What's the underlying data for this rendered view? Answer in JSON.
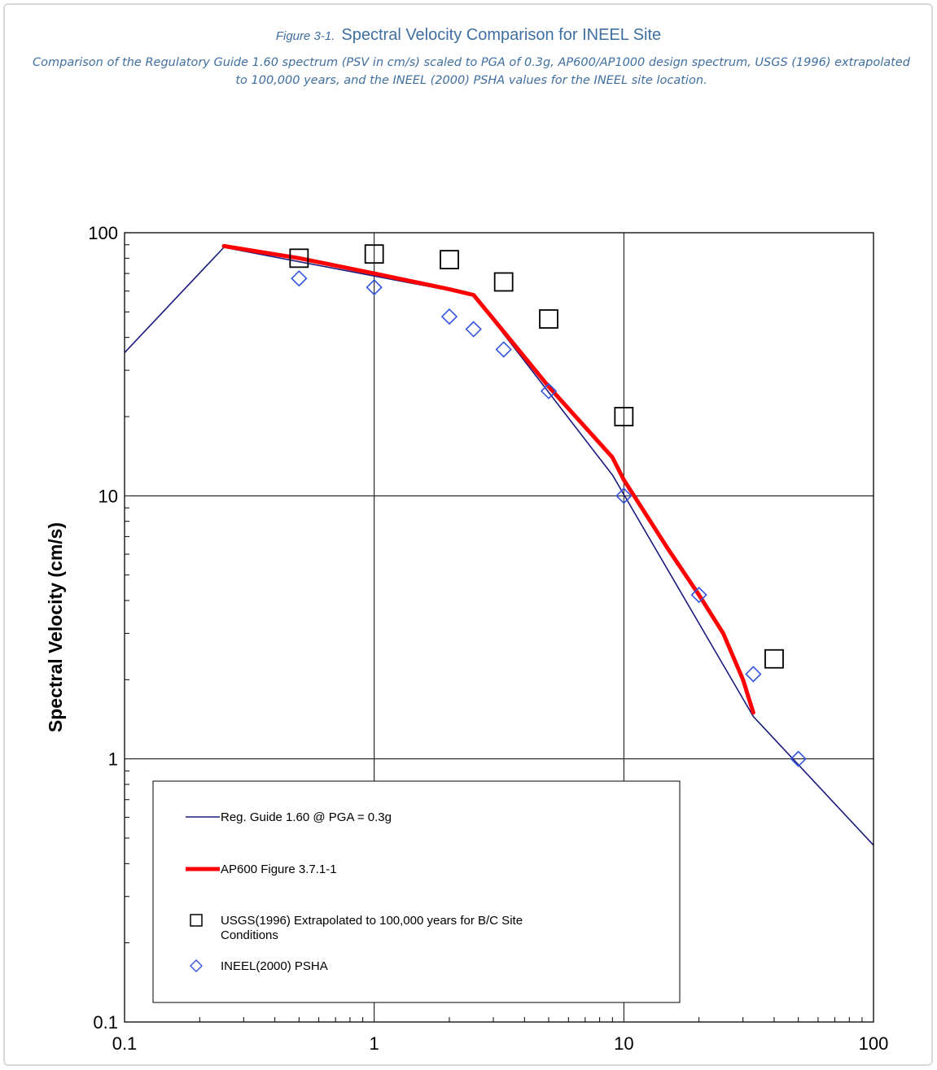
{
  "figure": {
    "number": "Figure 3-1.",
    "title": "Spectral Velocity Comparison for INEEL Site",
    "caption": "Comparison of the Regulatory Guide 1.60 spectrum (PSV in cm/s) scaled to PGA of 0.3g, AP600/AP1000 design spectrum, USGS (1996) extrapolated to 100,000 years, and the INEEL (2000) PSHA values for the INEEL site location."
  },
  "chart_data": {
    "type": "line",
    "xscale": "log",
    "yscale": "log",
    "xlim": [
      0.1,
      100
    ],
    "ylim": [
      0.1,
      100
    ],
    "grid": true,
    "xlabel": "",
    "ylabel": "Spectral Velocity (cm/s)",
    "x_ticks": [
      "0.1",
      "1",
      "10",
      "100"
    ],
    "y_ticks": [
      "0.1",
      "1",
      "10",
      "100"
    ],
    "legend_position": "bottom-left",
    "series": [
      {
        "name": "Reg. Guide 1.60 @ PGA = 0.3g",
        "kind": "line",
        "color": "#1a1a80",
        "x": [
          0.1,
          0.25,
          2.5,
          9.0,
          33.0,
          100.0
        ],
        "y": [
          35.0,
          88.0,
          58.0,
          12.0,
          1.45,
          0.47
        ]
      },
      {
        "name": "AP600 Figure 3.7.1-1",
        "kind": "thick-line",
        "color": "#ff0000",
        "x": [
          0.25,
          0.5,
          1.0,
          2.0,
          2.5,
          3.0,
          5.0,
          9.0,
          10.0,
          15.0,
          20.0,
          25.0,
          30.0,
          33.0
        ],
        "y": [
          89.0,
          80.0,
          70.0,
          61.0,
          58.0,
          47.0,
          26.0,
          14.0,
          11.5,
          6.3,
          4.2,
          3.0,
          2.0,
          1.5
        ]
      },
      {
        "name": "USGS(1996) Extrapolated to 100,000 years for B/C Site Conditions",
        "kind": "square-markers",
        "color": "#000000",
        "x": [
          0.5,
          1.0,
          2.0,
          3.3,
          5.0,
          10.0,
          40.0
        ],
        "y": [
          80.0,
          83.0,
          79.0,
          65.0,
          47.0,
          20.0,
          2.4
        ]
      },
      {
        "name": "INEEL(2000) PSHA",
        "kind": "diamond-markers",
        "color": "#3355dd",
        "x": [
          0.5,
          1.0,
          2.0,
          2.5,
          3.3,
          5.0,
          10.0,
          20.0,
          33.0,
          50.0
        ],
        "y": [
          67.0,
          62.0,
          48.0,
          43.0,
          36.0,
          25.0,
          10.0,
          4.2,
          2.1,
          1.0
        ]
      }
    ]
  }
}
